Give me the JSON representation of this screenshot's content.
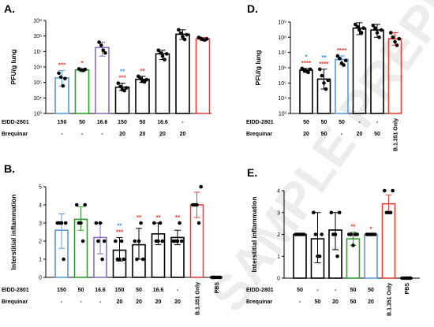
{
  "watermark": "SAMPLE PREPRINT",
  "chart_data": [
    {
      "id": "A",
      "panel_label": "A.",
      "type": "bar",
      "ylabel": "PFU/g lung",
      "scale": "log",
      "ylim": [
        1000,
        1000000000
      ],
      "yticks": [
        3,
        4,
        5,
        6,
        7,
        8,
        9
      ],
      "ytick_labels": [
        "10³",
        "10⁴",
        "10⁵",
        "10⁶",
        "10⁷",
        "10⁸",
        "10⁹"
      ],
      "row_labels": [
        "EIDD-2801",
        "Brequinar"
      ],
      "bars": [
        {
          "row1": "150",
          "row2": "-",
          "mean": 200000,
          "err": [
            60000,
            600000
          ],
          "color": "#5b9bd5",
          "points": [
            400000,
            220000,
            60000,
            180000
          ],
          "sig": [
            {
              "t": "***",
              "c": "#e8413a"
            }
          ]
        },
        {
          "row1": "50",
          "row2": "-",
          "mean": 650000,
          "err": [
            500000,
            800000
          ],
          "color": "#2ca02c",
          "points": [
            750000,
            650000,
            600000,
            700000
          ],
          "sig": [
            {
              "t": "*",
              "c": "#e8413a"
            }
          ]
        },
        {
          "row1": "16.6",
          "row2": "-",
          "mean": 18000000,
          "err": [
            5000000,
            40000000
          ],
          "color": "#8e6fc0",
          "points": [
            40000000,
            25000000,
            12000000,
            8000000
          ],
          "sig": []
        },
        {
          "row1": "150",
          "row2": "20",
          "mean": 50000,
          "err": [
            30000,
            90000
          ],
          "color": "#000000",
          "points": [
            90000,
            55000,
            35000,
            30000,
            45000
          ],
          "sig": [
            {
              "t": "**",
              "c": "#4a90d9"
            },
            {
              "t": "***",
              "c": "#e8413a"
            }
          ]
        },
        {
          "row1": "50",
          "row2": "20",
          "mean": 160000,
          "err": [
            100000,
            250000
          ],
          "color": "#000000",
          "points": [
            250000,
            180000,
            120000,
            110000,
            150000
          ],
          "sig": [
            {
              "t": "**",
              "c": "#e8413a"
            }
          ]
        },
        {
          "row1": "16.6",
          "row2": "20",
          "mean": 7000000,
          "err": [
            3000000,
            12000000
          ],
          "color": "#000000",
          "points": [
            12000000,
            8000000,
            5000000,
            3000000,
            7000000
          ],
          "sig": []
        },
        {
          "row1": "-",
          "row2": "20",
          "mean": 130000000,
          "err": [
            60000000,
            250000000
          ],
          "color": "#000000",
          "points": [
            250000000,
            150000000,
            90000000,
            60000000,
            120000000
          ],
          "sig": []
        },
        {
          "row1": "",
          "row2": "",
          "mean": 65000000,
          "err": [
            50000000,
            80000000
          ],
          "color": "#e8413a",
          "points": [
            80000000,
            70000000,
            60000000,
            55000000,
            65000000
          ],
          "sig": []
        }
      ],
      "extra_labels": []
    },
    {
      "id": "B",
      "panel_label": "B.",
      "type": "bar",
      "ylabel": "Interstitial inflammation",
      "scale": "linear",
      "ylim": [
        0,
        5
      ],
      "yticks": [
        0,
        1,
        2,
        3,
        4,
        5
      ],
      "ytick_labels": [
        "0",
        "1",
        "2",
        "3",
        "4",
        "5"
      ],
      "row_labels": [
        "EIDD-2801",
        "Brequinar"
      ],
      "bars": [
        {
          "row1": "150",
          "row2": "-",
          "mean": 2.6,
          "err": [
            1.6,
            3.5
          ],
          "color": "#5b9bd5",
          "points": [
            3,
            3,
            3,
            1,
            3
          ],
          "sig": []
        },
        {
          "row1": "50",
          "row2": "-",
          "mean": 3.2,
          "err": [
            2.6,
            3.9
          ],
          "color": "#2ca02c",
          "points": [
            4,
            3,
            3,
            2,
            4
          ],
          "sig": []
        },
        {
          "row1": "16.6",
          "row2": "-",
          "mean": 2.2,
          "err": [
            1.3,
            3.0
          ],
          "color": "#8e6fc0",
          "points": [
            3,
            2,
            3,
            1,
            2
          ],
          "sig": []
        },
        {
          "row1": "150",
          "row2": "20",
          "mean": 1.5,
          "err": [
            0.9,
            2.2
          ],
          "color": "#000000",
          "points": [
            2,
            1,
            1,
            2,
            1
          ],
          "sig": [
            {
              "t": "**",
              "c": "#4a90d9"
            },
            {
              "t": "***",
              "c": "#e8413a"
            }
          ]
        },
        {
          "row1": "50",
          "row2": "20",
          "mean": 1.8,
          "err": [
            1.0,
            2.7
          ],
          "color": "#000000",
          "points": [
            2,
            1,
            2,
            3,
            1
          ],
          "sig": [
            {
              "t": "**",
              "c": "#e8413a"
            }
          ]
        },
        {
          "row1": "16.6",
          "row2": "20",
          "mean": 2.4,
          "err": [
            1.8,
            3.0
          ],
          "color": "#000000",
          "points": [
            3,
            2,
            2,
            3,
            2
          ],
          "sig": [
            {
              "t": "**",
              "c": "#e8413a"
            }
          ]
        },
        {
          "row1": "-",
          "row2": "20",
          "mean": 2.2,
          "err": [
            1.8,
            2.6
          ],
          "color": "#000000",
          "points": [
            2,
            2,
            2,
            3,
            2
          ],
          "sig": [
            {
              "t": "**",
              "c": "#e8413a"
            }
          ]
        },
        {
          "row1": "",
          "row2": "",
          "mean": 4.0,
          "err": [
            3.3,
            4.7
          ],
          "color": "#e8413a",
          "points": [
            4,
            4,
            4,
            3,
            5
          ],
          "sig": []
        },
        {
          "row1": "",
          "row2": "",
          "mean": 0.0,
          "err": [
            0,
            0
          ],
          "color": "#000000",
          "points": [
            0,
            0,
            0,
            0,
            0
          ],
          "sig": []
        }
      ],
      "extra_labels": [
        {
          "bar": 7,
          "text": "B.1.351 Only"
        },
        {
          "bar": 8,
          "text": "PBS"
        }
      ]
    },
    {
      "id": "D",
      "panel_label": "D.",
      "type": "bar",
      "ylabel": "PFU/g lung",
      "scale": "log",
      "ylim": [
        1000,
        1000000000
      ],
      "yticks": [
        3,
        4,
        5,
        6,
        7,
        8,
        9
      ],
      "ytick_labels": [
        "10³",
        "10⁴",
        "10⁵",
        "10⁶",
        "10⁷",
        "10⁸",
        "10⁹"
      ],
      "row_labels": [
        "EIDD-2801",
        "Brequinar"
      ],
      "bars": [
        {
          "row1": "50",
          "row2": "20",
          "mean": 700000,
          "err": [
            500000,
            900000
          ],
          "color": "#000000",
          "points": [
            900000,
            700000,
            600000,
            500000,
            800000
          ],
          "sig": [
            {
              "t": "*",
              "c": "#4a90d9"
            },
            {
              "t": "****",
              "c": "#e8413a"
            }
          ]
        },
        {
          "row1": "50",
          "row2": "50",
          "mean": 180000,
          "err": [
            40000,
            800000
          ],
          "color": "#000000",
          "points": [
            800000,
            300000,
            100000,
            40000,
            150000
          ],
          "sig": [
            {
              "t": "**",
              "c": "#4a90d9"
            },
            {
              "t": "****",
              "c": "#e8413a"
            }
          ]
        },
        {
          "row1": "50",
          "row2": "-",
          "mean": 3500000,
          "err": [
            1500000,
            6000000
          ],
          "color": "#5b9bd5",
          "points": [
            6000000,
            4000000,
            2000000,
            1500000,
            3000000
          ],
          "sig": [
            {
              "t": "****",
              "c": "#e8413a"
            }
          ]
        },
        {
          "row1": "-",
          "row2": "20",
          "mean": 400000000,
          "err": [
            150000000,
            900000000
          ],
          "color": "#000000",
          "points": [
            700000000,
            500000000,
            300000000,
            200000000,
            400000000
          ],
          "sig": []
        },
        {
          "row1": "-",
          "row2": "50",
          "mean": 300000000,
          "err": [
            100000000,
            700000000
          ],
          "color": "#000000",
          "points": [
            600000000,
            400000000,
            200000000,
            100000000,
            300000000
          ],
          "sig": []
        },
        {
          "row1": "",
          "row2": "",
          "mean": 80000000,
          "err": [
            30000000,
            200000000
          ],
          "color": "#e8413a",
          "points": [
            200000000,
            100000000,
            50000000,
            30000000,
            80000000
          ],
          "sig": []
        }
      ],
      "extra_labels": [
        {
          "bar": 5,
          "text": "B.1.351 Only"
        }
      ]
    },
    {
      "id": "E",
      "panel_label": "E.",
      "type": "bar",
      "ylabel": "Interstitial inflammation",
      "scale": "linear",
      "ylim": [
        0,
        4
      ],
      "yticks": [
        0,
        1,
        2,
        3,
        4
      ],
      "ytick_labels": [
        "0",
        "1",
        "2",
        "3",
        "4"
      ],
      "row_labels": [
        "EIDD-2801",
        "Brequinar"
      ],
      "bars": [
        {
          "row1": "50",
          "row2": "-",
          "mean": 2.0,
          "err": [
            2.0,
            2.0
          ],
          "color": "#000000",
          "points": [
            2,
            2,
            2,
            2,
            2
          ],
          "sig": []
        },
        {
          "row1": "-",
          "row2": "50",
          "mean": 1.8,
          "err": [
            0.7,
            3.0
          ],
          "color": "#000000",
          "points": [
            3,
            2,
            1,
            1,
            2
          ],
          "sig": []
        },
        {
          "row1": "-",
          "row2": "20",
          "mean": 2.2,
          "err": [
            1.3,
            3.0
          ],
          "color": "#000000",
          "points": [
            3,
            2,
            2,
            1,
            3
          ],
          "sig": []
        },
        {
          "row1": "50",
          "row2": "50",
          "mean": 1.8,
          "err": [
            1.5,
            2.1
          ],
          "color": "#2ca02c",
          "points": [
            2,
            2,
            1.5,
            2,
            2
          ],
          "sig": [
            {
              "t": "**",
              "c": "#e8413a"
            }
          ]
        },
        {
          "row1": "50",
          "row2": "20",
          "mean": 2.0,
          "err": [
            2.0,
            2.0
          ],
          "color": "#5b9bd5",
          "points": [
            2,
            2,
            2,
            2,
            2
          ],
          "sig": [
            {
              "t": "*",
              "c": "#e8413a"
            }
          ]
        },
        {
          "row1": "",
          "row2": "",
          "mean": 3.4,
          "err": [
            3.0,
            3.8
          ],
          "color": "#e8413a",
          "points": [
            4,
            3,
            3,
            3,
            4
          ],
          "sig": []
        },
        {
          "row1": "",
          "row2": "",
          "mean": 0.0,
          "err": [
            0,
            0
          ],
          "color": "#000000",
          "points": [
            0,
            0,
            0,
            0,
            0
          ],
          "sig": []
        }
      ],
      "extra_labels": [
        {
          "bar": 5,
          "text": "B.1.351 Only"
        },
        {
          "bar": 6,
          "text": "PBS"
        }
      ]
    }
  ]
}
